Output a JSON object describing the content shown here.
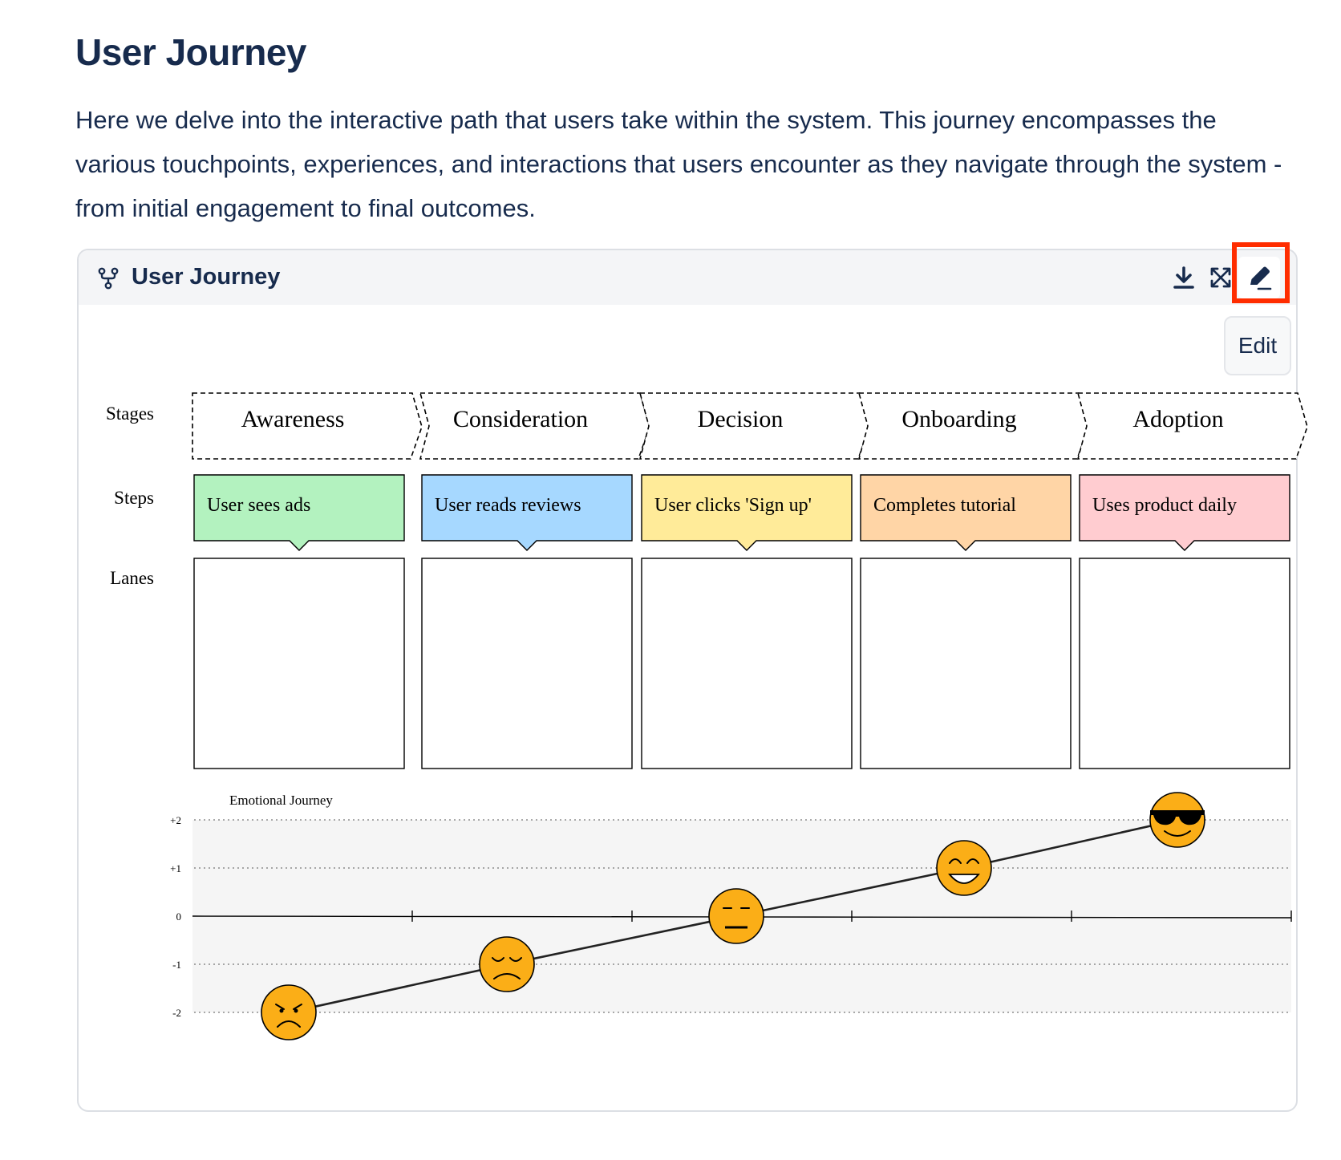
{
  "page": {
    "title": "User Journey",
    "intro": "Here we delve into the interactive path that users take within the system. This journey encompasses the various touchpoints, experiences, and interactions that users encounter as they navigate through the system - from initial engagement to final outcomes."
  },
  "panel": {
    "title": "User Journey",
    "icons": {
      "diagram": "diagram-icon",
      "download": "download-icon",
      "expand": "expand-icon",
      "edit": "pencil-icon"
    },
    "edit_tooltip": "Edit",
    "highlight_color": "#ff2d00"
  },
  "journey": {
    "row_labels": {
      "stages": "Stages",
      "steps": "Steps",
      "lanes": "Lanes"
    },
    "stages": [
      {
        "label": "Awareness",
        "step": "User sees ads",
        "step_color": "#b3f2bf",
        "emotion": -2,
        "face": "angry-face-icon"
      },
      {
        "label": "Consideration",
        "step": "User reads reviews",
        "step_color": "#a6d8ff",
        "emotion": -1,
        "face": "sad-face-icon"
      },
      {
        "label": "Decision",
        "step": "User clicks 'Sign up'",
        "step_color": "#ffeb99",
        "emotion": 0,
        "face": "neutral-face-icon"
      },
      {
        "label": "Onboarding",
        "step": "Completes tutorial",
        "step_color": "#ffd5a6",
        "emotion": 1,
        "face": "happy-face-icon"
      },
      {
        "label": "Adoption",
        "step": "Uses product daily",
        "step_color": "#ffccd0",
        "emotion": 2,
        "face": "cool-face-icon"
      }
    ],
    "emotional_journey": {
      "title": "Emotional Journey",
      "y_ticks": [
        "+2",
        "+1",
        "0",
        "-1",
        "-2"
      ],
      "ylim": [
        -2,
        2
      ],
      "face_color": "#fbae17"
    }
  }
}
